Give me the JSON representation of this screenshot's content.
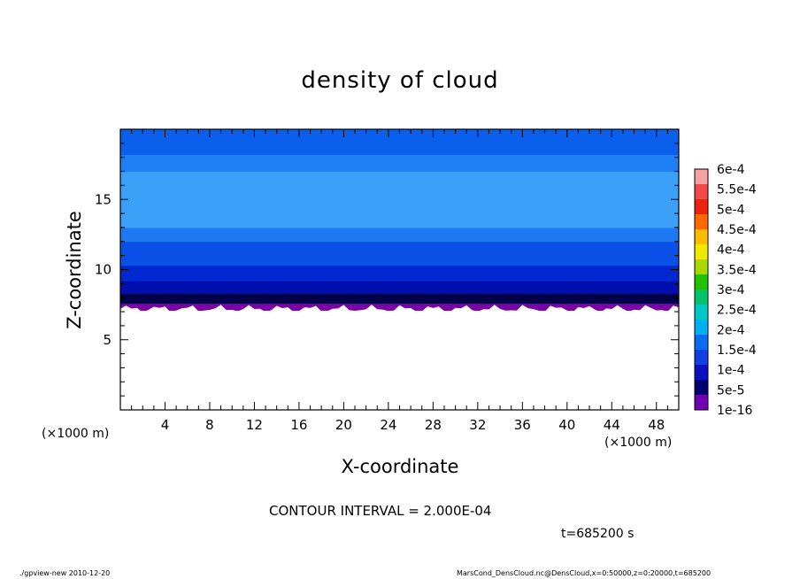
{
  "chart_data": {
    "type": "heatmap",
    "title": "density of cloud",
    "xlabel": "X-coordinate",
    "ylabel": "Z-coordinate",
    "x_unit_label": "(×1000 m)",
    "xlim": [
      0,
      50
    ],
    "ylim": [
      0,
      20
    ],
    "x_ticks": [
      4,
      8,
      12,
      16,
      20,
      24,
      28,
      32,
      36,
      40,
      44,
      48
    ],
    "y_ticks": [
      5,
      10,
      15
    ],
    "colorbar": {
      "labels": [
        "6e-4",
        "5.5e-4",
        "5e-4",
        "4.5e-4",
        "4e-4",
        "3.5e-4",
        "3e-4",
        "2.5e-4",
        "2e-4",
        "1.5e-4",
        "1e-4",
        "5e-5",
        "1e-16"
      ],
      "colors": [
        "#f4a1a1",
        "#f04a4a",
        "#ee2211",
        "#ff6a00",
        "#ffbb00",
        "#f0e800",
        "#a8d800",
        "#22c000",
        "#00c46a",
        "#00c8c8",
        "#00b0f0",
        "#0a6cf0",
        "#1040e0",
        "#0a10c0",
        "#000070",
        "#7000b0"
      ]
    },
    "cloud_layers_z": [
      {
        "z_from": 7.1,
        "z_to": 7.6,
        "color": "#7a00a8"
      },
      {
        "z_from": 7.6,
        "z_to": 8.3,
        "color": "#00004a"
      },
      {
        "z_from": 8.3,
        "z_to": 9.2,
        "color": "#0010b0"
      },
      {
        "z_from": 9.2,
        "z_to": 10.3,
        "color": "#0028d0"
      },
      {
        "z_from": 10.3,
        "z_to": 12.0,
        "color": "#0a50e6"
      },
      {
        "z_from": 12.0,
        "z_to": 13.0,
        "color": "#1e78f2"
      },
      {
        "z_from": 13.0,
        "z_to": 17.0,
        "color": "#3aa0f8"
      },
      {
        "z_from": 17.0,
        "z_to": 18.2,
        "color": "#1e80f4"
      },
      {
        "z_from": 18.2,
        "z_to": 20.0,
        "color": "#0a60ec"
      }
    ],
    "contour_interval": "CONTOUR INTERVAL = 2.000E-04",
    "time": "t=685200 s"
  },
  "footer": {
    "left": "./gpview-new   2010-12-20",
    "right": "MarsCond_DensCloud.nc@DensCloud,x=0:50000,z=0:20000,t=685200"
  }
}
